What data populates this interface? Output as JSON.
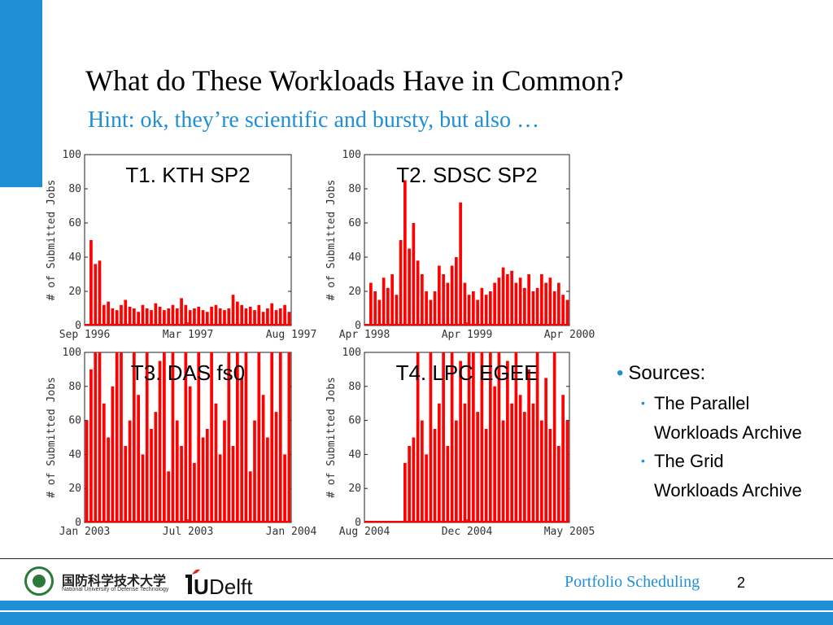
{
  "slide": {
    "title": "What do These Workloads Have in Common?",
    "subtitle": "Hint: ok, they’re scientific and bursty, but also …",
    "accent_color": "#1f8fd6",
    "series_color": "#ff0000"
  },
  "sources": {
    "heading": "Sources:",
    "items": [
      "The Parallel Workloads Archive",
      "The Grid Workloads Archive"
    ]
  },
  "footer": {
    "university_cn": "国防科学技术大学",
    "university_en": "National University of Defense Technology",
    "tudelft_logo": "TUDelft",
    "course": "Portfolio Scheduling",
    "page": "2"
  },
  "chart_data": [
    {
      "type": "line",
      "title": "T1. KTH SP2",
      "ylabel": "# of Submitted Jobs",
      "ylim": [
        0,
        100
      ],
      "yticks": [
        "0",
        "20",
        "40",
        "60",
        "80",
        "100"
      ],
      "xticks": [
        "Sep 1996",
        "Mar 1997",
        "Aug 1997"
      ],
      "series": [
        {
          "values": [
            0,
            50,
            36,
            38,
            12,
            14,
            10,
            9,
            12,
            15,
            11,
            10,
            8,
            12,
            10,
            9,
            13,
            11,
            9,
            10,
            12,
            10,
            16,
            12,
            9,
            10,
            11,
            9,
            8,
            11,
            12,
            10,
            9,
            10,
            18,
            14,
            12,
            10,
            11,
            9,
            12,
            8,
            10,
            13,
            9,
            10,
            12,
            8
          ]
        }
      ]
    },
    {
      "type": "line",
      "title": "T2. SDSC SP2",
      "ylabel": "# of Submitted Jobs",
      "ylim": [
        0,
        100
      ],
      "yticks": [
        "0",
        "20",
        "40",
        "60",
        "80",
        "100"
      ],
      "xticks": [
        "Apr 1998",
        "Apr 1999",
        "Apr 2000"
      ],
      "series": [
        {
          "values": [
            0,
            25,
            20,
            15,
            28,
            22,
            30,
            18,
            50,
            85,
            45,
            60,
            38,
            30,
            20,
            15,
            20,
            35,
            30,
            25,
            35,
            40,
            72,
            25,
            18,
            20,
            15,
            22,
            18,
            20,
            25,
            28,
            34,
            30,
            32,
            25,
            28,
            22,
            30,
            20,
            22,
            30,
            25,
            28,
            20,
            25,
            18,
            15
          ]
        }
      ]
    },
    {
      "type": "line",
      "title": "T3. DAS fs0",
      "ylabel": "# of Submitted Jobs",
      "ylim": [
        0,
        100
      ],
      "yticks": [
        "0",
        "20",
        "40",
        "60",
        "80",
        "100"
      ],
      "xticks": [
        "Jan 2003",
        "Jul 2003",
        "Jan 2004"
      ],
      "series": [
        {
          "values": [
            60,
            90,
            100,
            100,
            70,
            50,
            80,
            100,
            100,
            45,
            60,
            100,
            75,
            40,
            100,
            55,
            65,
            95,
            100,
            30,
            100,
            60,
            45,
            100,
            80,
            35,
            100,
            50,
            55,
            100,
            70,
            40,
            60,
            100,
            45,
            100,
            85,
            100,
            30,
            60,
            100,
            75,
            50,
            100,
            65,
            100,
            40,
            100
          ]
        }
      ]
    },
    {
      "type": "line",
      "title": "T4. LPC EGEE",
      "ylabel": "# of Submitted Jobs",
      "ylim": [
        0,
        100
      ],
      "yticks": [
        "0",
        "20",
        "40",
        "60",
        "80",
        "100"
      ],
      "xticks": [
        "Aug 2004",
        "Dec 2004",
        "May 2005"
      ],
      "series": [
        {
          "values": [
            0,
            0,
            0,
            0,
            0,
            0,
            0,
            0,
            0,
            35,
            45,
            50,
            100,
            60,
            40,
            100,
            55,
            70,
            100,
            45,
            100,
            60,
            95,
            70,
            100,
            100,
            65,
            100,
            55,
            100,
            80,
            100,
            60,
            95,
            70,
            100,
            75,
            65,
            90,
            70,
            100,
            60,
            85,
            55,
            100,
            45,
            75,
            60
          ]
        }
      ]
    }
  ]
}
